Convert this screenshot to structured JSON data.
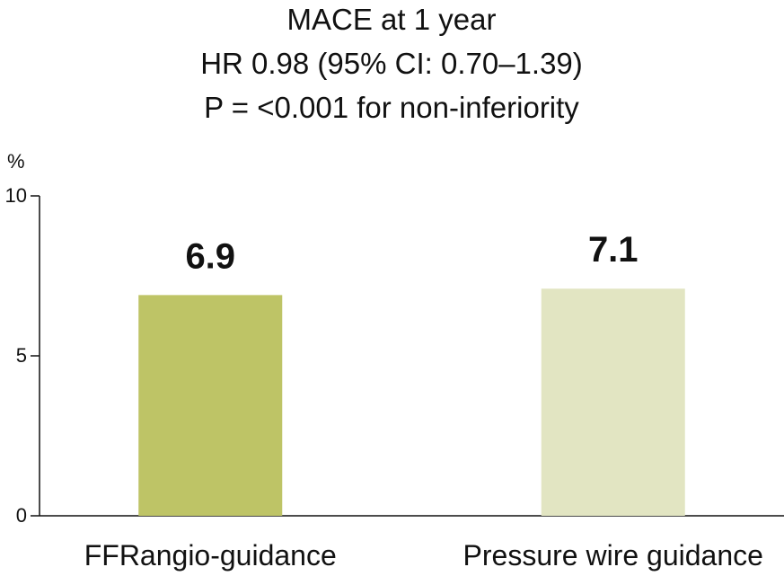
{
  "chart_data": {
    "type": "bar",
    "title_lines": [
      "MACE at 1 year",
      "HR 0.98 (95% CI: 0.70–1.39)",
      "P = <0.001 for non-inferiority"
    ],
    "ylabel": "%",
    "xlabel": "",
    "categories": [
      "FFRangio-guidance",
      "Pressure wire guidance"
    ],
    "values": [
      6.9,
      7.1
    ],
    "value_labels": [
      "6.9",
      "7.1"
    ],
    "bar_colors": [
      "#bec466",
      "#e2e5c2"
    ],
    "ylim": [
      0,
      10
    ],
    "yticks": [
      0,
      5,
      10
    ],
    "ytick_labels": [
      "0",
      "5",
      "10"
    ],
    "grid": false,
    "legend": "none"
  }
}
